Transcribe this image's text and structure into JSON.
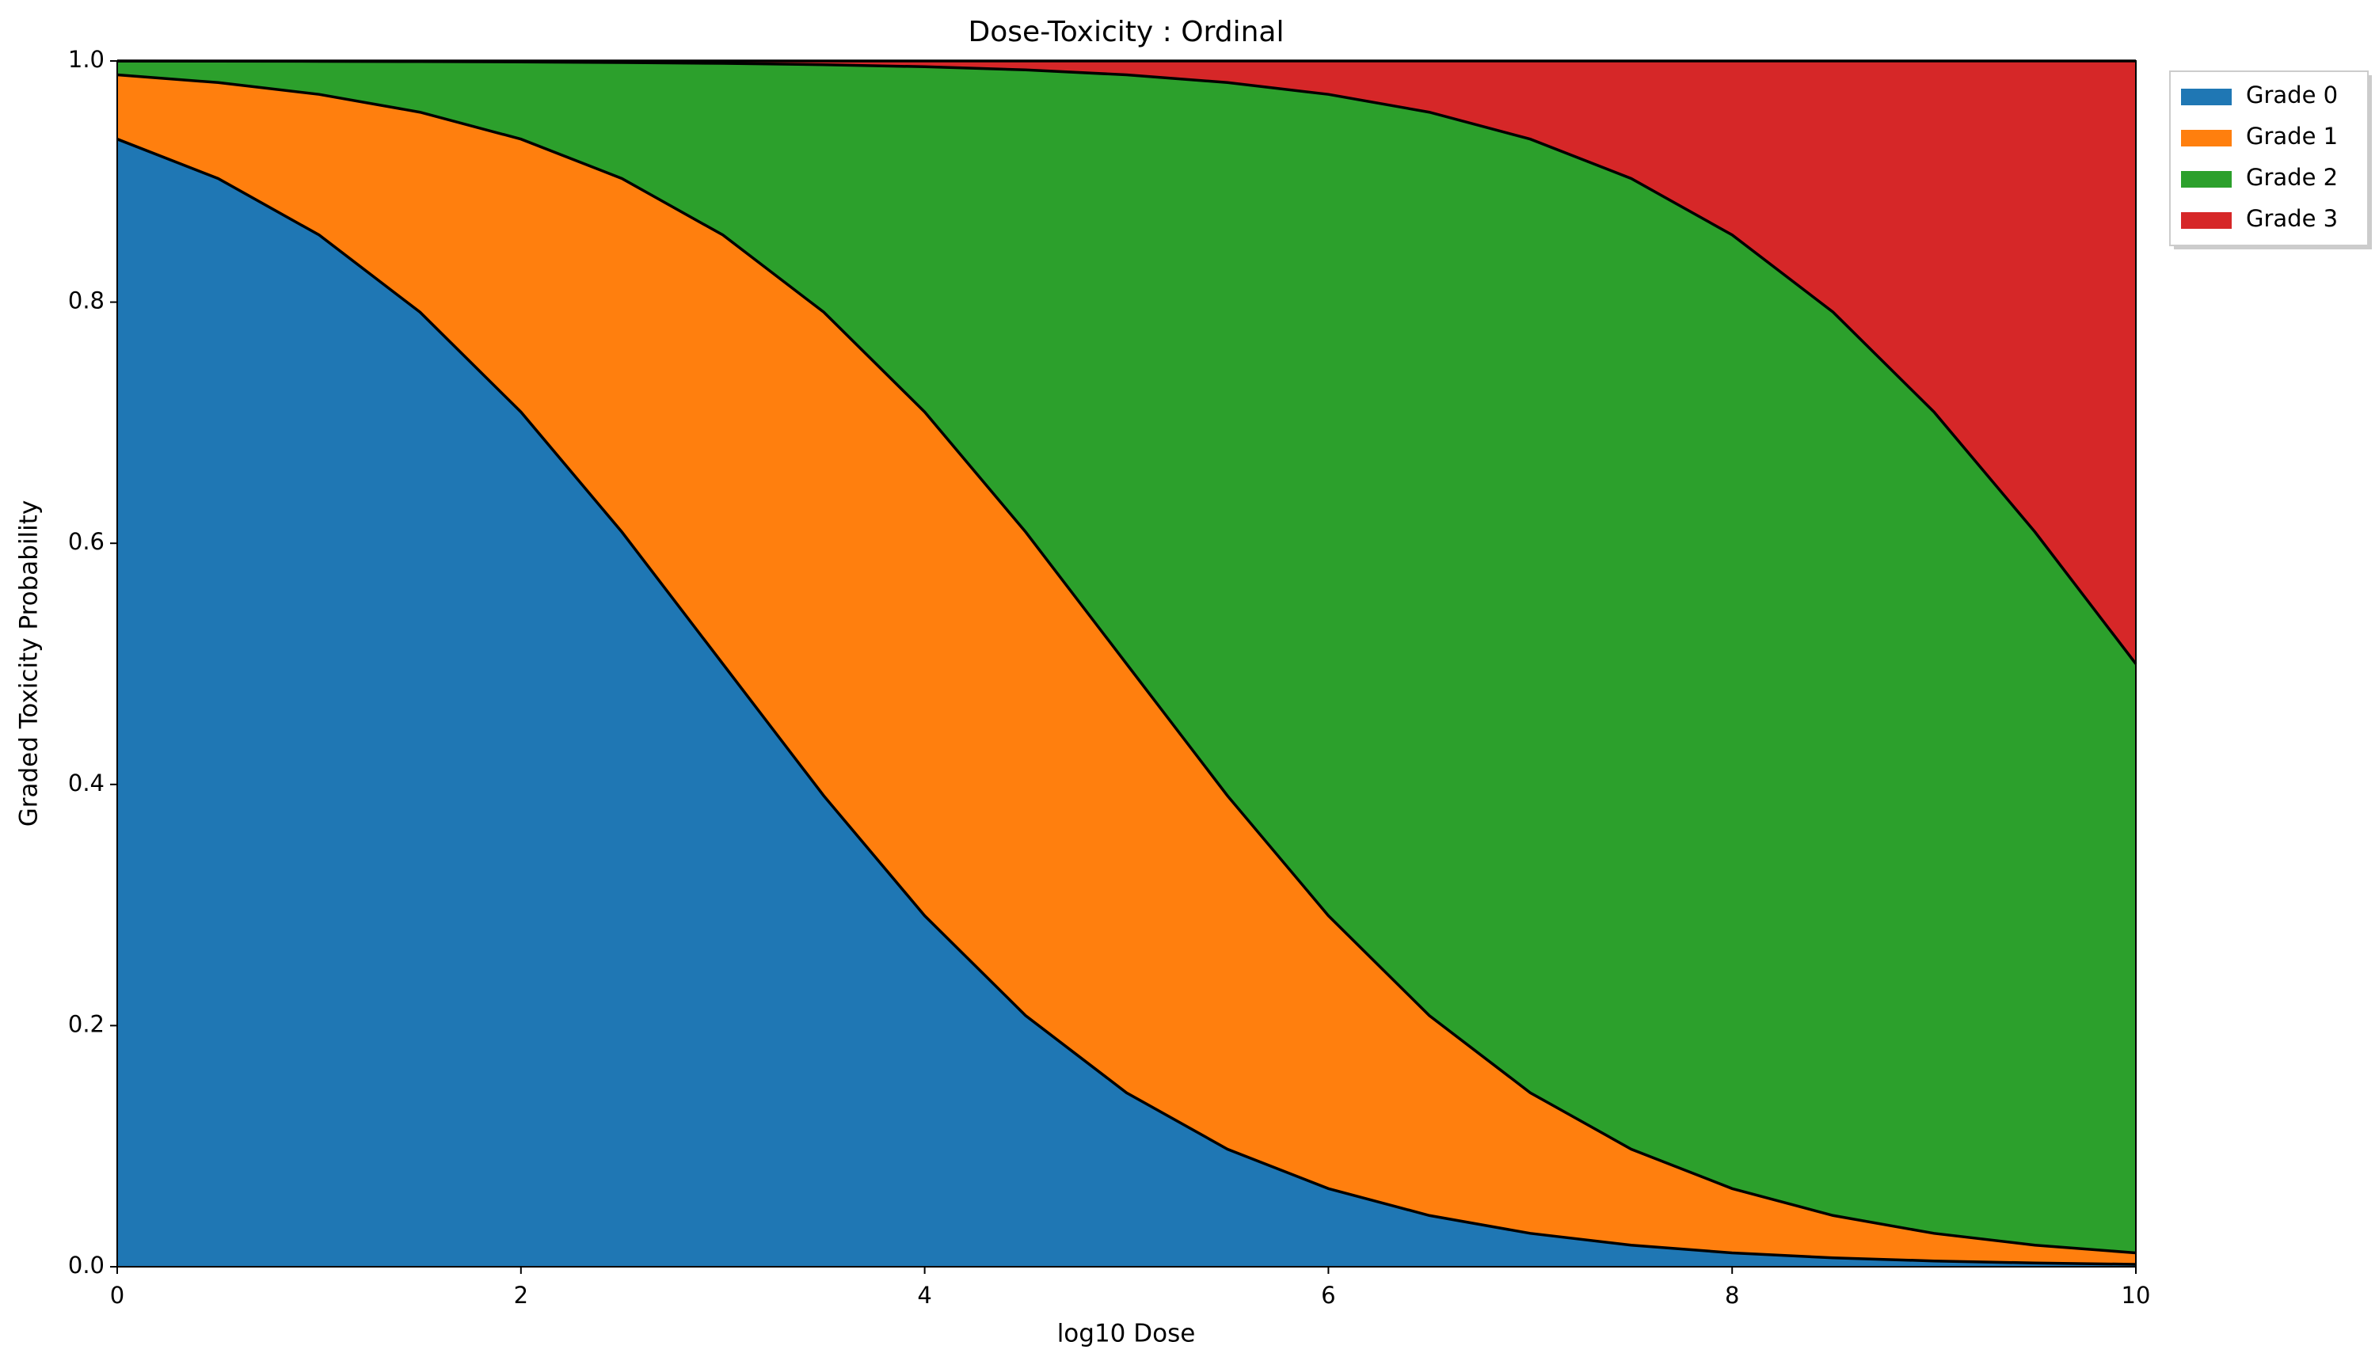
{
  "chart_data": {
    "type": "stackedarea",
    "title": "Dose-Toxicity : Ordinal",
    "x_label": "log10 Dose",
    "y_label": "Graded Toxicity Probability",
    "x": [
      0,
      0.5,
      1,
      1.5,
      2,
      2.5,
      3,
      3.5,
      4,
      4.5,
      5,
      5.5,
      6,
      6.5,
      7,
      7.5,
      8,
      8.5,
      9,
      9.5,
      10
    ],
    "series": [
      {
        "name": "Grade 0",
        "color": "#1f77b4",
        "values": [
          0.9352,
          0.9025,
          0.8557,
          0.7917,
          0.7089,
          0.6094,
          0.5,
          0.3906,
          0.2911,
          0.2083,
          0.1443,
          0.0975,
          0.0648,
          0.0425,
          0.0277,
          0.0179,
          0.0115,
          0.0074,
          0.0048,
          0.0031,
          0.002
        ]
      },
      {
        "name": "Grade 1",
        "color": "#ff7f0e",
        "values": [
          0.0533,
          0.0796,
          0.1166,
          0.1658,
          0.2263,
          0.2931,
          0.3557,
          0.4011,
          0.4178,
          0.4011,
          0.3557,
          0.2931,
          0.2263,
          0.1658,
          0.1166,
          0.0796,
          0.0533,
          0.0351,
          0.0229,
          0.0148,
          0.0095
        ]
      },
      {
        "name": "Grade 2",
        "color": "#2ca02c",
        "values": [
          0.0114,
          0.0177,
          0.0274,
          0.042,
          0.064,
          0.0962,
          0.1423,
          0.2052,
          0.2863,
          0.3832,
          0.4885,
          0.5915,
          0.6812,
          0.7492,
          0.7909,
          0.805,
          0.7909,
          0.7492,
          0.6812,
          0.5915,
          0.4885
        ]
      },
      {
        "name": "Grade 3",
        "color": "#d62728",
        "values": [
          0.0001,
          0.0002,
          0.0003,
          0.0005,
          0.0008,
          0.0013,
          0.002,
          0.0031,
          0.0048,
          0.0074,
          0.0115,
          0.0179,
          0.0277,
          0.0425,
          0.0648,
          0.0975,
          0.1443,
          0.2083,
          0.2911,
          0.3906,
          0.5
        ]
      }
    ],
    "xlim": [
      0,
      10
    ],
    "ylim": [
      0,
      1
    ],
    "xticks": [
      0,
      2,
      4,
      6,
      8,
      10
    ],
    "yticks": [
      {
        "value": 0,
        "label": "0.0"
      },
      {
        "value": 0.2,
        "label": "0.2"
      },
      {
        "value": 0.4,
        "label": "0.4"
      },
      {
        "value": 0.6,
        "label": "0.6"
      },
      {
        "value": 0.8,
        "label": "0.8"
      },
      {
        "value": 1,
        "label": "1.0"
      }
    ],
    "grid": false,
    "legend": "outside-right"
  }
}
